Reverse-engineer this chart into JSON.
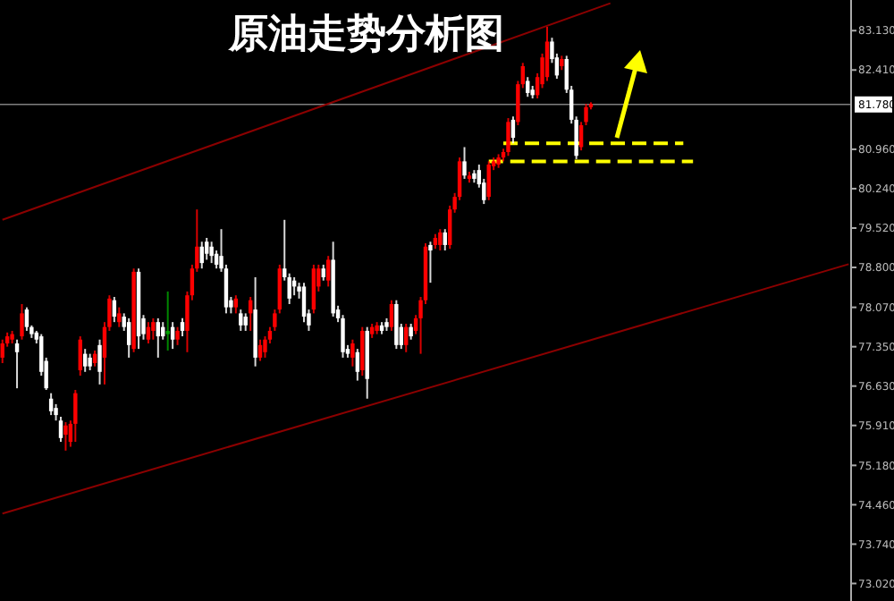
{
  "chart_data": {
    "type": "candlestick",
    "title": "原油走势分析图",
    "categories": [
      null,
      null,
      null,
      null,
      null,
      null,
      null,
      null,
      null,
      null,
      null,
      null,
      null,
      null,
      null,
      null,
      null,
      null,
      null,
      null,
      null,
      null,
      null,
      null,
      null,
      null,
      null,
      null,
      null,
      null,
      null,
      null,
      null,
      null,
      null,
      null,
      null,
      null,
      null,
      null,
      null,
      null,
      null,
      null,
      null,
      null,
      null,
      null,
      null,
      null,
      null,
      null,
      null,
      null,
      null,
      null,
      null,
      null,
      null,
      null,
      null,
      null,
      null,
      null,
      null,
      null,
      null,
      null,
      null,
      null,
      null,
      null,
      null,
      null,
      null,
      null,
      null,
      null,
      null,
      null,
      null,
      null,
      null,
      null,
      null,
      null,
      null,
      null,
      null,
      null,
      null,
      null,
      null,
      null,
      null,
      null,
      null,
      null,
      null,
      null,
      null,
      null,
      null,
      null,
      null,
      null,
      null,
      null,
      null,
      null,
      null,
      null,
      null,
      null,
      null,
      null,
      null,
      null,
      null,
      null,
      null,
      null,
      null,
      null,
      null,
      null,
      null,
      null,
      null,
      null,
      null,
      null,
      null,
      null,
      null,
      null,
      null,
      null,
      null,
      null,
      null,
      null,
      null,
      null,
      null,
      null,
      null,
      null,
      null,
      null,
      null,
      null,
      null,
      null,
      null,
      null,
      null,
      null,
      null,
      null,
      null,
      null,
      null,
      null,
      null,
      null,
      null,
      null,
      null,
      null,
      null,
      null,
      null,
      null,
      null
    ],
    "ohlc": [
      [
        77.15,
        77.48,
        77.05,
        77.41
      ],
      [
        77.41,
        77.61,
        77.35,
        77.54
      ],
      [
        77.48,
        77.64,
        77.41,
        77.58
      ],
      [
        77.41,
        77.48,
        76.59,
        77.25
      ],
      [
        77.54,
        78.13,
        77.48,
        77.96
      ],
      [
        78.03,
        78.07,
        77.64,
        77.71
      ],
      [
        77.71,
        77.74,
        77.51,
        77.58
      ],
      [
        77.61,
        77.64,
        77.41,
        77.48
      ],
      [
        77.54,
        77.58,
        76.82,
        76.89
      ],
      [
        77.09,
        77.15,
        76.56,
        76.59
      ],
      [
        76.4,
        76.5,
        76.1,
        76.17
      ],
      [
        76.23,
        76.3,
        76.0,
        76.1
      ],
      [
        76.0,
        76.07,
        75.61,
        75.68
      ],
      [
        75.74,
        75.97,
        75.45,
        75.91
      ],
      [
        75.61,
        76.0,
        75.52,
        75.94
      ],
      [
        75.94,
        76.56,
        75.61,
        76.5
      ],
      [
        76.92,
        77.54,
        76.82,
        77.48
      ],
      [
        77.22,
        77.31,
        76.89,
        76.99
      ],
      [
        77.15,
        77.22,
        76.92,
        76.99
      ],
      [
        77.05,
        77.28,
        76.99,
        77.22
      ],
      [
        77.38,
        77.48,
        76.66,
        76.89
      ],
      [
        77.15,
        77.8,
        76.66,
        77.71
      ],
      [
        77.71,
        78.29,
        77.64,
        78.23
      ],
      [
        78.2,
        78.26,
        77.8,
        77.9
      ],
      [
        77.8,
        78.07,
        77.71,
        77.96
      ],
      [
        77.9,
        77.96,
        77.64,
        77.71
      ],
      [
        77.8,
        77.87,
        77.15,
        77.38
      ],
      [
        77.31,
        78.78,
        77.25,
        78.72
      ],
      [
        78.72,
        78.78,
        77.31,
        77.54
      ],
      [
        77.87,
        77.93,
        77.48,
        77.58
      ],
      [
        77.48,
        77.8,
        77.41,
        77.71
      ],
      [
        77.64,
        77.87,
        77.48,
        77.8
      ],
      [
        77.8,
        77.87,
        77.15,
        77.54
      ],
      [
        77.71,
        77.8,
        77.48,
        77.54
      ],
      [
        77.58,
        78.36,
        77.28,
        77.64
      ],
      [
        77.71,
        77.8,
        77.31,
        77.48
      ],
      [
        77.48,
        77.71,
        77.38,
        77.64
      ],
      [
        77.8,
        77.87,
        77.54,
        77.64
      ],
      [
        77.64,
        78.36,
        77.25,
        78.29
      ],
      [
        78.29,
        78.85,
        78.2,
        78.78
      ],
      [
        78.78,
        79.86,
        78.72,
        79.18
      ],
      [
        79.18,
        79.27,
        78.78,
        78.88
      ],
      [
        79.27,
        79.34,
        78.94,
        79.05
      ],
      [
        79.18,
        79.27,
        78.88,
        79.01
      ],
      [
        79.05,
        79.11,
        78.78,
        78.85
      ],
      [
        79.01,
        79.5,
        78.72,
        78.78
      ],
      [
        78.78,
        78.85,
        77.96,
        78.07
      ],
      [
        78.2,
        78.26,
        77.96,
        78.07
      ],
      [
        78.07,
        78.29,
        77.96,
        78.23
      ],
      [
        77.96,
        78.03,
        77.64,
        77.74
      ],
      [
        77.9,
        77.96,
        77.64,
        77.74
      ],
      [
        77.96,
        78.26,
        77.64,
        78.2
      ],
      [
        78.03,
        78.62,
        76.99,
        77.15
      ],
      [
        77.15,
        77.48,
        77.09,
        77.38
      ],
      [
        77.25,
        77.54,
        77.15,
        77.48
      ],
      [
        77.48,
        77.71,
        77.41,
        77.64
      ],
      [
        77.71,
        78.03,
        77.64,
        77.96
      ],
      [
        78.03,
        78.85,
        77.96,
        78.78
      ],
      [
        78.78,
        79.67,
        78.56,
        78.62
      ],
      [
        78.62,
        78.69,
        78.13,
        78.23
      ],
      [
        78.56,
        78.62,
        78.29,
        78.45
      ],
      [
        78.45,
        78.52,
        78.23,
        78.36
      ],
      [
        78.45,
        78.52,
        77.8,
        77.9
      ],
      [
        77.96,
        78.03,
        77.64,
        77.74
      ],
      [
        78.03,
        78.85,
        77.96,
        78.78
      ],
      [
        78.45,
        78.85,
        78.36,
        78.78
      ],
      [
        78.78,
        78.85,
        78.56,
        78.62
      ],
      [
        78.56,
        79.01,
        78.45,
        78.94
      ],
      [
        78.94,
        79.27,
        77.9,
        77.96
      ],
      [
        78.03,
        78.1,
        77.8,
        77.87
      ],
      [
        77.87,
        77.93,
        77.15,
        77.25
      ],
      [
        77.31,
        77.38,
        77.15,
        77.22
      ],
      [
        77.15,
        77.48,
        76.99,
        77.41
      ],
      [
        77.25,
        77.31,
        76.73,
        76.89
      ],
      [
        76.92,
        77.71,
        76.82,
        77.64
      ],
      [
        77.64,
        77.71,
        76.4,
        76.76
      ],
      [
        77.58,
        77.77,
        77.51,
        77.71
      ],
      [
        77.64,
        77.8,
        77.58,
        77.74
      ],
      [
        77.74,
        77.8,
        77.58,
        77.64
      ],
      [
        77.8,
        77.87,
        77.64,
        77.71
      ],
      [
        77.71,
        78.2,
        77.64,
        78.13
      ],
      [
        78.13,
        78.2,
        77.31,
        77.38
      ],
      [
        77.71,
        77.77,
        77.31,
        77.38
      ],
      [
        77.38,
        77.77,
        77.25,
        77.71
      ],
      [
        77.71,
        77.77,
        77.48,
        77.54
      ],
      [
        77.64,
        77.93,
        77.58,
        77.87
      ],
      [
        77.87,
        78.26,
        77.22,
        78.2
      ],
      [
        78.2,
        79.24,
        78.13,
        79.18
      ],
      [
        79.21,
        79.27,
        78.52,
        79.11
      ],
      [
        79.21,
        79.41,
        79.14,
        79.34
      ],
      [
        79.21,
        79.5,
        79.11,
        79.44
      ],
      [
        79.44,
        79.5,
        79.11,
        79.21
      ],
      [
        79.21,
        79.93,
        79.14,
        79.86
      ],
      [
        79.86,
        80.16,
        79.8,
        80.09
      ],
      [
        80.09,
        80.81,
        80.03,
        80.74
      ],
      [
        80.74,
        81.0,
        80.42,
        80.48
      ],
      [
        80.42,
        80.55,
        80.35,
        80.48
      ],
      [
        80.52,
        80.58,
        80.35,
        80.42
      ],
      [
        80.58,
        80.68,
        80.26,
        80.32
      ],
      [
        80.35,
        80.42,
        79.96,
        80.03
      ],
      [
        80.09,
        80.74,
        80.03,
        80.68
      ],
      [
        80.65,
        80.81,
        80.58,
        80.74
      ],
      [
        80.68,
        80.87,
        80.62,
        80.81
      ],
      [
        80.81,
        80.97,
        80.74,
        80.91
      ],
      [
        80.91,
        81.53,
        80.84,
        81.46
      ],
      [
        81.5,
        81.56,
        81.07,
        81.17
      ],
      [
        81.46,
        82.21,
        81.4,
        82.15
      ],
      [
        82.15,
        82.54,
        82.08,
        82.48
      ],
      [
        82.21,
        82.28,
        81.92,
        81.99
      ],
      [
        82.05,
        82.12,
        81.89,
        81.95
      ],
      [
        81.95,
        82.35,
        81.89,
        82.28
      ],
      [
        82.15,
        82.71,
        82.08,
        82.64
      ],
      [
        82.28,
        83.2,
        82.21,
        82.93
      ],
      [
        82.93,
        83.0,
        82.54,
        82.61
      ],
      [
        82.64,
        82.71,
        82.25,
        82.31
      ],
      [
        82.48,
        82.67,
        82.41,
        82.61
      ],
      [
        82.61,
        82.67,
        81.99,
        82.05
      ],
      [
        82.05,
        82.12,
        81.43,
        81.5
      ],
      [
        81.5,
        81.56,
        80.78,
        80.84
      ],
      [
        81.0,
        81.46,
        80.94,
        81.4
      ],
      [
        81.46,
        81.79,
        81.4,
        81.73
      ],
      [
        81.73,
        81.82,
        81.69,
        81.79
      ],
      null,
      null,
      null,
      null,
      null,
      null,
      null,
      null,
      null,
      null,
      null,
      null,
      null,
      null,
      null,
      null,
      null,
      null,
      null,
      null,
      null,
      null,
      null,
      null,
      null,
      null,
      null,
      null,
      null,
      null,
      null,
      null,
      null,
      null,
      null,
      null,
      null,
      null,
      null,
      null,
      null,
      null,
      null,
      null,
      null,
      null,
      null,
      null,
      null,
      null,
      null,
      null,
      null
    ],
    "colors": [
      "#ff0000",
      "#ff0000",
      "#ff0000",
      "#ffffff",
      "#ff0000",
      "#ffffff",
      "#ffffff",
      "#ffffff",
      "#ffffff",
      "#ffffff",
      "#ffffff",
      "#ffffff",
      "#ffffff",
      "#ff0000",
      "#ff0000",
      "#ff0000",
      "#ff0000",
      "#ffffff",
      "#ffffff",
      "#ff0000",
      "#ffffff",
      "#ff0000",
      "#ff0000",
      "#ffffff",
      "#ff0000",
      "#ffffff",
      "#ffffff",
      "#ff0000",
      "#ffffff",
      "#ffffff",
      "#ff0000",
      "#ff0000",
      "#ffffff",
      "#ffffff",
      "#00a000",
      "#ffffff",
      "#ff0000",
      "#ffffff",
      "#ff0000",
      "#ff0000",
      "#ff0000",
      "#ffffff",
      "#ffffff",
      "#ffffff",
      "#ffffff",
      "#ffffff",
      "#ffffff",
      "#ffffff",
      "#ff0000",
      "#ffffff",
      "#ffffff",
      "#ff0000",
      "#ffffff",
      "#ff0000",
      "#ff0000",
      "#ff0000",
      "#ff0000",
      "#ff0000",
      "#ffffff",
      "#ffffff",
      "#ffffff",
      "#ffffff",
      "#ffffff",
      "#ffffff",
      "#ff0000",
      "#ff0000",
      "#ffffff",
      "#ff0000",
      "#ffffff",
      "#ffffff",
      "#ffffff",
      "#ffffff",
      "#ff0000",
      "#ffffff",
      "#ff0000",
      "#ffffff",
      "#ff0000",
      "#ff0000",
      "#ffffff",
      "#ffffff",
      "#ff0000",
      "#ffffff",
      "#ffffff",
      "#ff0000",
      "#ffffff",
      "#ff0000",
      "#ff0000",
      "#ff0000",
      "#ffffff",
      "#ff0000",
      "#ff0000",
      "#ffffff",
      "#ff0000",
      "#ff0000",
      "#ff0000",
      "#ffffff",
      "#ff0000",
      "#ffffff",
      "#ffffff",
      "#ffffff",
      "#ff0000",
      "#ff0000",
      "#ff0000",
      "#ff0000",
      "#ff0000",
      "#ffffff",
      "#ff0000",
      "#ff0000",
      "#ffffff",
      "#ffffff",
      "#ff0000",
      "#ff0000",
      "#ff0000",
      "#ffffff",
      "#ffffff",
      "#ff0000",
      "#ffffff",
      "#ffffff",
      "#ffffff",
      "#ff0000",
      "#ff0000",
      "#ff0000",
      null,
      null,
      null,
      null,
      null,
      null,
      null,
      null,
      null,
      null,
      null,
      null,
      null,
      null,
      null,
      null,
      null,
      null,
      null,
      null,
      null,
      null,
      null,
      null,
      null,
      null,
      null,
      null,
      null,
      null,
      null,
      null,
      null,
      null,
      null,
      null,
      null,
      null,
      null,
      null,
      null,
      null,
      null,
      null,
      null,
      null,
      null,
      null,
      null,
      null,
      null,
      null,
      null
    ],
    "series": [
      {
        "type": "line",
        "color": "#8b0000",
        "values": [
          79.67,
          null,
          null,
          null,
          null,
          null,
          null,
          null,
          null,
          null,
          null,
          null,
          null,
          null,
          null,
          null,
          null,
          null,
          null,
          null,
          null,
          null,
          null,
          null,
          null,
          null,
          null,
          null,
          null,
          null,
          null,
          null,
          null,
          null,
          null,
          null,
          null,
          null,
          null,
          null,
          null,
          null,
          null,
          null,
          null,
          null,
          null,
          null,
          null,
          null,
          null,
          null,
          null,
          null,
          null,
          null,
          null,
          null,
          null,
          null,
          null,
          null,
          null,
          null,
          null,
          null,
          null,
          null,
          null,
          null,
          null,
          null,
          null,
          null,
          null,
          null,
          null,
          null,
          null,
          null,
          null,
          null,
          null,
          null,
          null,
          null,
          null,
          null,
          null,
          null,
          null,
          null,
          null,
          null,
          null,
          null,
          null,
          null,
          null,
          null,
          null,
          null,
          null,
          null,
          null,
          null,
          null,
          null,
          null,
          null,
          null,
          null,
          null,
          null,
          null,
          null,
          null,
          null,
          null,
          null,
          null,
          null,
          null,
          null,
          null,
          83.63,
          null,
          null,
          null,
          null,
          null,
          null,
          null,
          null,
          null,
          null,
          null,
          null,
          null,
          null,
          null,
          null,
          null,
          null,
          null,
          null,
          null,
          null,
          null,
          null,
          null,
          null,
          null,
          null,
          null,
          null,
          null,
          null,
          null,
          null,
          null,
          null,
          null,
          null,
          null,
          null,
          null,
          null,
          null,
          null,
          null,
          null,
          null,
          null,
          null
        ]
      },
      {
        "type": "line",
        "color": "#8b0000",
        "values": [
          74.3,
          null,
          null,
          null,
          null,
          null,
          null,
          null,
          null,
          null,
          null,
          null,
          null,
          null,
          null,
          null,
          null,
          null,
          null,
          null,
          null,
          null,
          null,
          null,
          null,
          null,
          null,
          null,
          null,
          null,
          null,
          null,
          null,
          null,
          null,
          null,
          null,
          null,
          null,
          null,
          null,
          null,
          null,
          null,
          null,
          null,
          null,
          null,
          null,
          null,
          null,
          null,
          null,
          null,
          null,
          null,
          null,
          null,
          null,
          null,
          null,
          null,
          null,
          null,
          null,
          null,
          null,
          null,
          null,
          null,
          null,
          null,
          null,
          null,
          null,
          null,
          null,
          null,
          null,
          null,
          null,
          null,
          null,
          null,
          null,
          null,
          null,
          null,
          null,
          null,
          null,
          null,
          null,
          null,
          null,
          null,
          null,
          null,
          null,
          null,
          null,
          null,
          null,
          null,
          null,
          null,
          null,
          null,
          null,
          null,
          null,
          null,
          null,
          null,
          null,
          null,
          null,
          null,
          null,
          null,
          null,
          null,
          null,
          null,
          null,
          null,
          null,
          null,
          null,
          null,
          null,
          null,
          null,
          null,
          null,
          null,
          null,
          null,
          null,
          null,
          null,
          null,
          null,
          null,
          null,
          null,
          null,
          null,
          null,
          null,
          null,
          null,
          null,
          null,
          null,
          null,
          null,
          null,
          null,
          null,
          null,
          null,
          null,
          null,
          null,
          null,
          null,
          null,
          null,
          null,
          null,
          null,
          null,
          null,
          78.86
        ]
      },
      {
        "type": "line",
        "color": "#ffff00",
        "line_style": "dashed",
        "values": [
          null,
          null,
          null,
          null,
          null,
          null,
          null,
          null,
          null,
          null,
          null,
          null,
          null,
          null,
          null,
          null,
          null,
          null,
          null,
          null,
          null,
          null,
          null,
          null,
          null,
          null,
          null,
          null,
          null,
          null,
          null,
          null,
          null,
          null,
          null,
          null,
          null,
          null,
          null,
          null,
          null,
          null,
          null,
          null,
          null,
          null,
          null,
          null,
          null,
          null,
          null,
          null,
          null,
          null,
          null,
          null,
          null,
          null,
          null,
          null,
          null,
          null,
          null,
          null,
          null,
          null,
          null,
          null,
          null,
          null,
          null,
          null,
          null,
          null,
          null,
          null,
          null,
          null,
          null,
          null,
          null,
          null,
          null,
          null,
          null,
          null,
          null,
          null,
          null,
          null,
          null,
          null,
          null,
          null,
          null,
          null,
          null,
          null,
          null,
          null,
          null,
          null,
          null,
          81.07,
          null,
          null,
          null,
          null,
          null,
          null,
          null,
          null,
          null,
          null,
          null,
          null,
          null,
          null,
          null,
          null,
          null,
          null,
          null,
          null,
          null,
          null,
          null,
          null,
          null,
          null,
          null,
          null,
          null,
          null,
          null,
          null,
          null,
          null,
          null,
          null,
          81.07,
          null,
          null,
          null,
          null,
          null,
          null,
          null,
          null,
          null,
          null,
          null,
          null,
          null,
          null,
          null,
          null,
          null,
          null,
          null,
          null,
          null,
          null,
          null,
          null,
          null,
          null,
          null,
          null,
          null,
          null,
          null,
          null,
          null,
          null
        ]
      },
      {
        "type": "line",
        "color": "#ffff00",
        "line_style": "dashed",
        "values": [
          null,
          null,
          null,
          null,
          null,
          null,
          null,
          null,
          null,
          null,
          null,
          null,
          null,
          null,
          null,
          null,
          null,
          null,
          null,
          null,
          null,
          null,
          null,
          null,
          null,
          null,
          null,
          null,
          null,
          null,
          null,
          null,
          null,
          null,
          null,
          null,
          null,
          null,
          null,
          null,
          null,
          null,
          null,
          null,
          null,
          null,
          null,
          null,
          null,
          null,
          null,
          null,
          null,
          null,
          null,
          null,
          null,
          null,
          null,
          null,
          null,
          null,
          null,
          null,
          null,
          null,
          null,
          null,
          null,
          null,
          null,
          null,
          null,
          null,
          null,
          null,
          null,
          null,
          null,
          null,
          null,
          null,
          null,
          null,
          null,
          null,
          null,
          null,
          null,
          null,
          null,
          null,
          null,
          null,
          null,
          null,
          null,
          null,
          null,
          null,
          80.74,
          null,
          null,
          null,
          null,
          null,
          null,
          null,
          null,
          null,
          null,
          null,
          null,
          null,
          null,
          null,
          null,
          null,
          null,
          null,
          null,
          null,
          null,
          null,
          null,
          null,
          null,
          null,
          null,
          null,
          null,
          null,
          null,
          null,
          null,
          null,
          null,
          null,
          null,
          null,
          null,
          null,
          80.74,
          null,
          null,
          null,
          null,
          null,
          null,
          null,
          null,
          null,
          null,
          null,
          null,
          null,
          null,
          null,
          null,
          null,
          null,
          null,
          null,
          null,
          null,
          null,
          null,
          null,
          null,
          null,
          null,
          null,
          null,
          null,
          null
        ]
      }
    ],
    "ylim": [
      72.7,
      83.69
    ],
    "yticks": [
      {
        "value": 83.13,
        "label": "83.130"
      },
      {
        "value": 82.41,
        "label": "82.410"
      },
      {
        "value": 80.96,
        "label": "80.960"
      },
      {
        "value": 80.24,
        "label": "80.240"
      },
      {
        "value": 79.52,
        "label": "79.520"
      },
      {
        "value": 78.8,
        "label": "78.800"
      },
      {
        "value": 78.07,
        "label": "78.070"
      },
      {
        "value": 77.35,
        "label": "77.350"
      },
      {
        "value": 76.63,
        "label": "76.630"
      },
      {
        "value": 75.91,
        "label": "75.910"
      },
      {
        "value": 75.18,
        "label": "75.180"
      },
      {
        "value": 74.46,
        "label": "74.460"
      },
      {
        "value": 73.74,
        "label": "73.740"
      },
      {
        "value": 73.02,
        "label": "73.020"
      }
    ],
    "ref_lines": [
      {
        "axis": "y",
        "value": 81.78,
        "label": "81.780",
        "color": "#808080"
      }
    ],
    "tick_labels": "y",
    "grid": false
  }
}
